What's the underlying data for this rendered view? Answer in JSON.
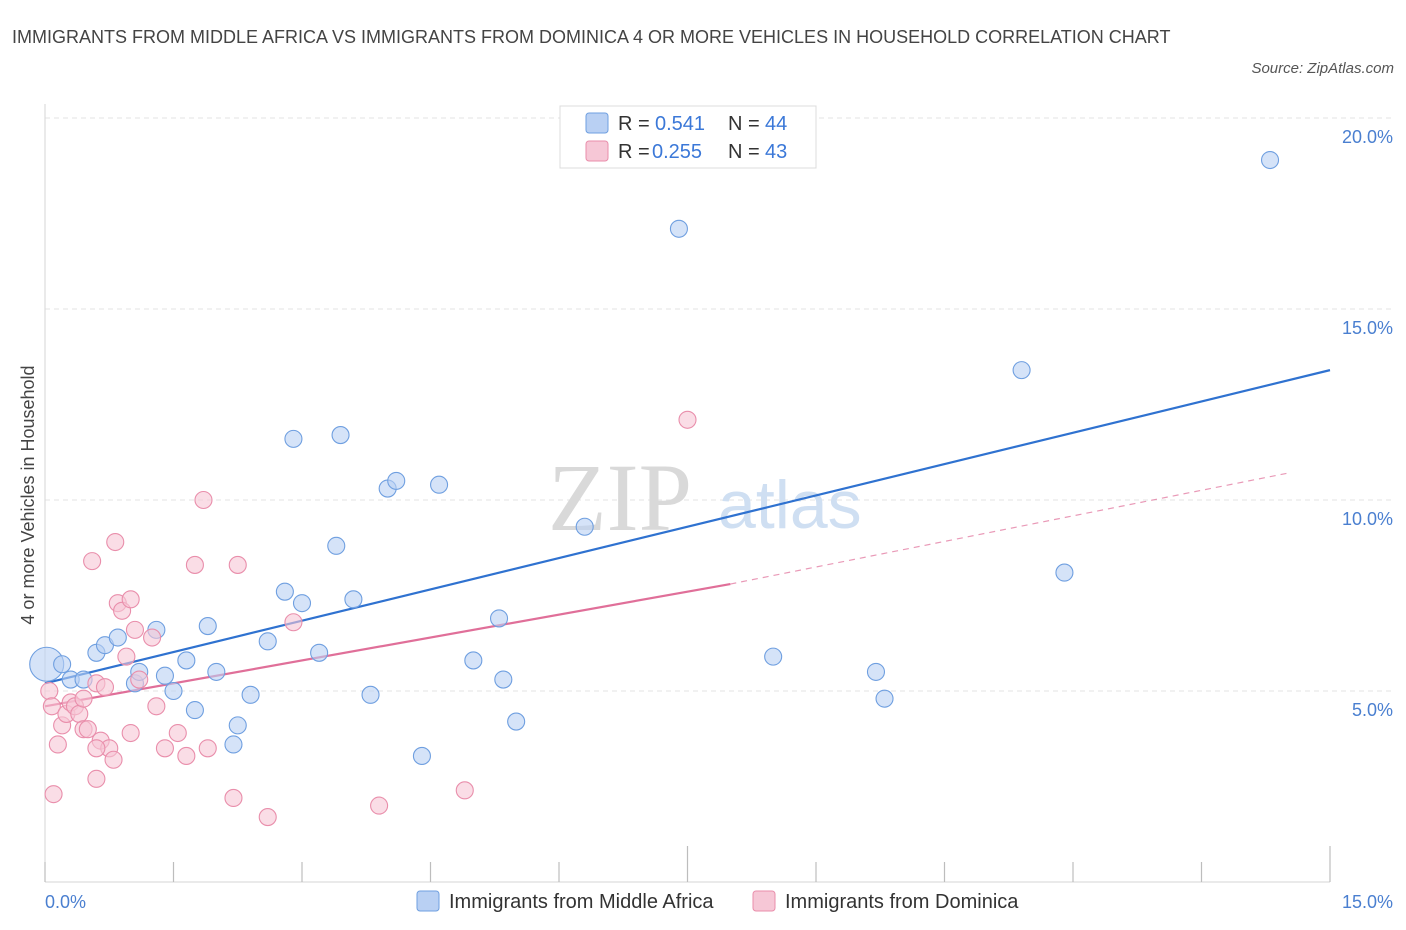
{
  "title": "IMMIGRANTS FROM MIDDLE AFRICA VS IMMIGRANTS FROM DOMINICA 4 OR MORE VEHICLES IN HOUSEHOLD CORRELATION CHART",
  "source": "Source: ZipAtlas.com",
  "watermark": {
    "zip": "ZIP",
    "atlas": "atlas"
  },
  "colors": {
    "blue_fill": "#b9d0f3",
    "blue_stroke": "#6f9fe0",
    "blue_line": "#2f72d0",
    "pink_fill": "#f6c7d6",
    "pink_stroke": "#e98eab",
    "pink_line": "#e06f99",
    "grid": "#e3e3e3",
    "axis_label": "#4a7fd0"
  },
  "legend_top": {
    "r_label": "R =",
    "n_label": "N =",
    "rows": [
      {
        "r": "0.541",
        "n": "44"
      },
      {
        "r": "0.255",
        "n": "43"
      }
    ]
  },
  "chart_data": {
    "type": "scatter",
    "title": "IMMIGRANTS FROM MIDDLE AFRICA VS IMMIGRANTS FROM DOMINICA 4 OR MORE VEHICLES IN HOUSEHOLD CORRELATION CHART",
    "xlabel": "",
    "ylabel": "4 or more Vehicles in Household",
    "xlim": [
      0,
      15
    ],
    "ylim": [
      0,
      20
    ],
    "x_tick_labels": [
      "0.0%",
      "15.0%"
    ],
    "y_ticks": [
      5,
      10,
      15,
      20
    ],
    "y_tick_labels": [
      "5.0%",
      "10.0%",
      "15.0%",
      "20.0%"
    ],
    "grid": true,
    "legend_position": "bottom",
    "series": [
      {
        "name": "Immigrants from Middle Africa",
        "r": 0.541,
        "n": 44,
        "trend": {
          "x0": 0,
          "y0": 5.2,
          "x1": 15,
          "y1": 13.4
        },
        "points": [
          [
            0.02,
            5.7
          ],
          [
            0.2,
            5.7
          ],
          [
            0.3,
            5.3
          ],
          [
            0.45,
            5.3
          ],
          [
            0.6,
            6.0
          ],
          [
            0.7,
            6.2
          ],
          [
            0.85,
            6.4
          ],
          [
            1.05,
            5.2
          ],
          [
            1.1,
            5.5
          ],
          [
            1.3,
            6.6
          ],
          [
            1.4,
            5.4
          ],
          [
            1.5,
            5.0
          ],
          [
            1.65,
            5.8
          ],
          [
            1.75,
            4.5
          ],
          [
            1.9,
            6.7
          ],
          [
            2.0,
            5.5
          ],
          [
            2.2,
            3.6
          ],
          [
            2.25,
            4.1
          ],
          [
            2.4,
            4.9
          ],
          [
            2.6,
            6.3
          ],
          [
            2.8,
            7.6
          ],
          [
            2.9,
            11.6
          ],
          [
            3.0,
            7.3
          ],
          [
            3.2,
            6.0
          ],
          [
            3.4,
            8.8
          ],
          [
            3.45,
            11.7
          ],
          [
            3.6,
            7.4
          ],
          [
            3.8,
            4.9
          ],
          [
            4.0,
            10.3
          ],
          [
            4.1,
            10.5
          ],
          [
            4.4,
            3.3
          ],
          [
            4.6,
            10.4
          ],
          [
            5.0,
            5.8
          ],
          [
            5.3,
            6.9
          ],
          [
            5.35,
            5.3
          ],
          [
            5.5,
            4.2
          ],
          [
            6.3,
            9.3
          ],
          [
            7.4,
            17.1
          ],
          [
            8.5,
            5.9
          ],
          [
            9.7,
            5.5
          ],
          [
            9.8,
            4.8
          ],
          [
            11.4,
            13.4
          ],
          [
            11.9,
            8.1
          ],
          [
            14.3,
            18.9
          ]
        ]
      },
      {
        "name": "Immigrants from Dominica",
        "r": 0.255,
        "n": 43,
        "trend": {
          "x0": 0,
          "y0": 4.6,
          "x1": 8.0,
          "y1": 7.8
        },
        "trend_dashed": {
          "x0": 8.0,
          "y0": 7.8,
          "x1": 14.5,
          "y1": 10.7
        },
        "points": [
          [
            0.05,
            5.0
          ],
          [
            0.08,
            4.6
          ],
          [
            0.1,
            2.3
          ],
          [
            0.15,
            3.6
          ],
          [
            0.2,
            4.1
          ],
          [
            0.25,
            4.4
          ],
          [
            0.3,
            4.7
          ],
          [
            0.35,
            4.6
          ],
          [
            0.4,
            4.4
          ],
          [
            0.45,
            4.0
          ],
          [
            0.5,
            4.0
          ],
          [
            0.55,
            8.4
          ],
          [
            0.6,
            5.2
          ],
          [
            0.6,
            2.7
          ],
          [
            0.65,
            3.7
          ],
          [
            0.7,
            5.1
          ],
          [
            0.75,
            3.5
          ],
          [
            0.8,
            3.2
          ],
          [
            0.82,
            8.9
          ],
          [
            0.85,
            7.3
          ],
          [
            0.9,
            7.1
          ],
          [
            0.95,
            5.9
          ],
          [
            1.0,
            7.4
          ],
          [
            1.0,
            3.9
          ],
          [
            1.05,
            6.6
          ],
          [
            1.25,
            6.4
          ],
          [
            1.3,
            4.6
          ],
          [
            1.4,
            3.5
          ],
          [
            1.55,
            3.9
          ],
          [
            1.65,
            3.3
          ],
          [
            1.75,
            8.3
          ],
          [
            1.85,
            10.0
          ],
          [
            1.9,
            3.5
          ],
          [
            2.2,
            2.2
          ],
          [
            2.25,
            8.3
          ],
          [
            2.6,
            1.7
          ],
          [
            2.9,
            6.8
          ],
          [
            3.9,
            2.0
          ],
          [
            4.9,
            2.4
          ],
          [
            7.5,
            12.1
          ],
          [
            0.45,
            4.8
          ],
          [
            1.1,
            5.3
          ],
          [
            0.6,
            3.5
          ]
        ]
      }
    ]
  }
}
